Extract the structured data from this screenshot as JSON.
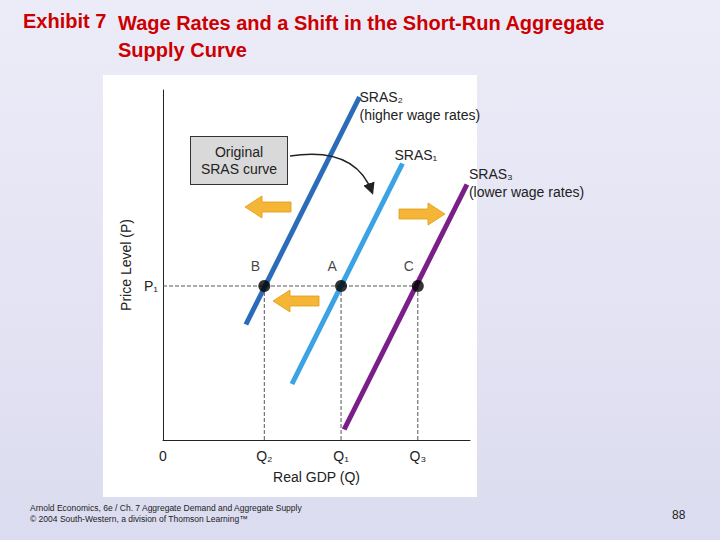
{
  "slide": {
    "exhibit": "Exhibit 7",
    "title": "Wage Rates and a Shift in the Short-Run Aggregate Supply Curve",
    "footer": [
      "Arnold Economics, 6e / Ch. 7 Aggregate Demand and Aggregate Supply",
      "© 2004 South-Western, a division of Thomson Learning™"
    ],
    "page": 88
  },
  "chart_data": {
    "type": "line",
    "x_label": "Real GDP (Q)",
    "y_label": "Price Level (P)",
    "xlim": [
      0,
      100
    ],
    "ylim": [
      0,
      100
    ],
    "xticks": [
      0,
      {
        "value": 33,
        "label": "Q₂"
      },
      {
        "value": 58,
        "label": "Q₁"
      },
      {
        "value": 83,
        "label": "Q₃"
      }
    ],
    "yticks": [
      {
        "value": 44,
        "label": "P₁"
      }
    ],
    "grid": false,
    "tick_labels": true,
    "series": [
      {
        "name": "SRAS₂",
        "annotation": "(higher wage rates)",
        "color": "#2b6cb8",
        "x": [
          27,
          64
        ],
        "values": [
          33,
          98
        ]
      },
      {
        "name": "SRAS₁",
        "color": "#3aa3e3",
        "x": [
          42,
          78
        ],
        "values": [
          16,
          79
        ]
      },
      {
        "name": "SRAS₃",
        "annotation": "(lower wage rates)",
        "color": "#7b1f88",
        "x": [
          59,
          99
        ],
        "values": [
          3,
          73
        ]
      }
    ],
    "points": [
      {
        "label": "B",
        "x": 33,
        "y": 44
      },
      {
        "label": "A",
        "x": 58,
        "y": 44
      },
      {
        "label": "C",
        "x": 83,
        "y": 44
      }
    ],
    "annotations": [
      "Original SRAS curve"
    ]
  }
}
